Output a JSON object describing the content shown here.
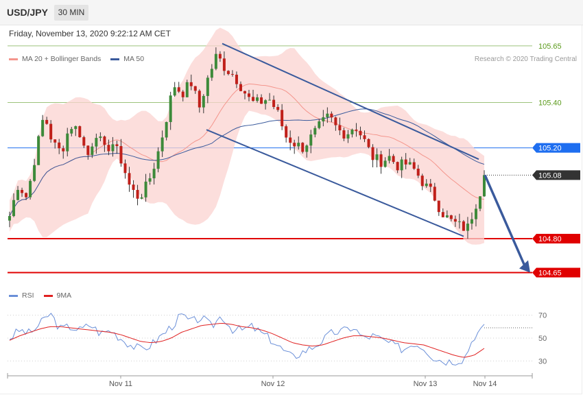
{
  "header": {
    "symbol": "USD/JPY",
    "timeframe": "30 MIN",
    "timestamp": "Friday, November 13, 2020 9:22:12 AM CET"
  },
  "legend_main": [
    {
      "label": "MA 20 + Bollinger Bands",
      "color": "#f4958c"
    },
    {
      "label": "MA 50",
      "color": "#3a5a9c"
    }
  ],
  "legend_rsi": [
    {
      "label": "RSI",
      "color": "#6a8fd8"
    },
    {
      "label": "9MA",
      "color": "#e02020"
    }
  ],
  "credit": "Research © 2020 Trading Central",
  "chart_data": [
    {
      "type": "candlestick",
      "x_ticks": [
        "Nov 11",
        "Nov 12",
        "Nov 13",
        "Nov 14"
      ],
      "ylim": [
        104.57,
        105.71
      ],
      "levels": [
        {
          "value": 105.65,
          "label": "105.65",
          "style": "line",
          "color": "#9cc27a",
          "text_color": "#5a9a1a"
        },
        {
          "value": 105.4,
          "label": "105.40",
          "style": "line",
          "color": "#9cc27a",
          "text_color": "#5a9a1a"
        },
        {
          "value": 105.2,
          "label": "105.20",
          "style": "tag",
          "color": "#1e6ef0"
        },
        {
          "value": 105.08,
          "label": "105.08",
          "style": "tag",
          "color": "#333333"
        },
        {
          "value": 104.8,
          "label": "104.80",
          "style": "tag",
          "color": "#e00000"
        },
        {
          "value": 104.65,
          "label": "104.65",
          "style": "tag",
          "color": "#e00000"
        }
      ],
      "last_price": 105.08,
      "close_path": [
        104.9,
        105.04,
        104.98,
        105.17,
        105.35,
        105.22,
        105.18,
        105.3,
        105.28,
        105.16,
        105.27,
        105.19,
        105.22,
        105.14,
        105.02,
        104.98,
        105.04,
        105.15,
        105.3,
        105.48,
        105.44,
        105.49,
        105.38,
        105.51,
        105.61,
        105.55,
        105.52,
        105.46,
        105.4,
        105.4,
        105.42,
        105.36,
        105.25,
        105.22,
        105.2,
        105.25,
        105.3,
        105.34,
        105.28,
        105.26,
        105.3,
        105.24,
        105.16,
        105.14,
        105.16,
        105.12,
        105.13,
        105.1,
        105.04,
        105.0,
        104.92,
        104.88,
        104.86,
        104.84,
        104.95,
        105.06
      ],
      "channel": {
        "upper": [
          105.66,
          105.15
        ],
        "lower": [
          105.28,
          104.81
        ]
      },
      "forecast_target": 104.65
    },
    {
      "type": "line",
      "title": "RSI",
      "y_ticks": [
        70,
        50,
        30
      ],
      "ylim": [
        20,
        80
      ],
      "rsi": [
        50,
        57,
        54,
        62,
        72,
        58,
        60,
        57,
        62,
        54,
        57,
        50,
        44,
        40,
        44,
        52,
        60,
        70,
        64,
        68,
        60,
        70,
        58,
        57,
        60,
        54,
        48,
        40,
        33,
        38,
        42,
        48,
        55,
        56,
        60,
        50,
        52,
        48,
        44,
        40,
        46,
        42,
        33,
        30,
        30,
        32,
        52,
        59
      ],
      "rsi_ma": [
        48,
        52,
        55,
        58,
        60,
        60,
        59,
        58,
        57,
        56,
        55,
        53,
        50,
        47,
        46,
        47,
        50,
        55,
        58,
        61,
        62,
        63,
        62,
        60,
        59,
        57,
        54,
        50,
        46,
        44,
        43,
        44,
        47,
        50,
        52,
        52,
        51,
        50,
        48,
        46,
        45,
        44,
        41,
        38,
        35,
        33,
        35,
        41
      ]
    }
  ]
}
